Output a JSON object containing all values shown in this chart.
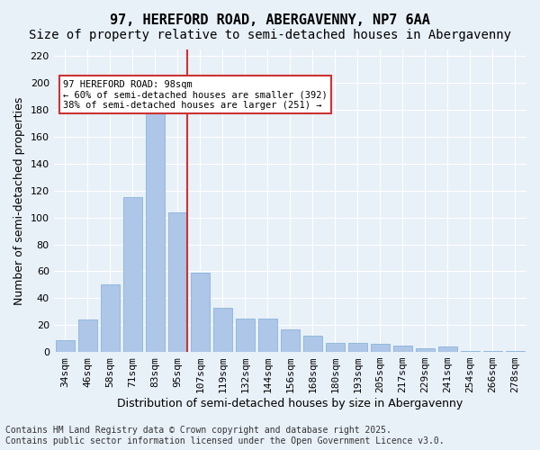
{
  "title": "97, HEREFORD ROAD, ABERGAVENNY, NP7 6AA",
  "subtitle": "Size of property relative to semi-detached houses in Abergavenny",
  "xlabel": "Distribution of semi-detached houses by size in Abergavenny",
  "ylabel": "Number of semi-detached properties",
  "categories": [
    "34sqm",
    "46sqm",
    "58sqm",
    "71sqm",
    "83sqm",
    "95sqm",
    "107sqm",
    "119sqm",
    "132sqm",
    "144sqm",
    "156sqm",
    "168sqm",
    "180sqm",
    "193sqm",
    "205sqm",
    "217sqm",
    "229sqm",
    "241sqm",
    "254sqm",
    "266sqm",
    "278sqm"
  ],
  "values": [
    9,
    24,
    50,
    115,
    180,
    104,
    59,
    33,
    25,
    25,
    17,
    12,
    7,
    7,
    6,
    5,
    3,
    4,
    1,
    1,
    1
  ],
  "bar_color": "#aec6e8",
  "bar_edge_color": "#7aadd4",
  "highlight_index": 5,
  "highlight_color": "#cc3333",
  "property_label": "97 HEREFORD ROAD: 98sqm",
  "pct_smaller": 60,
  "count_smaller": 392,
  "pct_larger": 38,
  "count_larger": 251,
  "ylim": [
    0,
    225
  ],
  "yticks": [
    0,
    20,
    40,
    60,
    80,
    100,
    120,
    140,
    160,
    180,
    200,
    220
  ],
  "annotation_box_color": "#ffffff",
  "annotation_border_color": "#cc3333",
  "footer": "Contains HM Land Registry data © Crown copyright and database right 2025.\nContains public sector information licensed under the Open Government Licence v3.0.",
  "bg_color": "#e8f0f8",
  "plot_bg_color": "#e8f0f8",
  "grid_color": "#ffffff",
  "title_fontsize": 11,
  "subtitle_fontsize": 10,
  "axis_label_fontsize": 9,
  "tick_fontsize": 8,
  "footer_fontsize": 7
}
